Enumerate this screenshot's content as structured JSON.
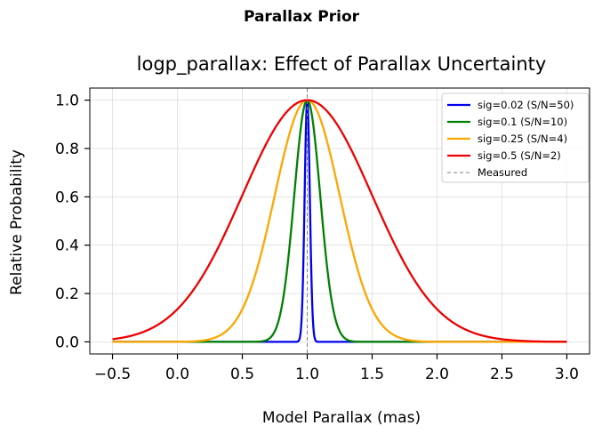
{
  "figure": {
    "suptitle": "Parallax Prior"
  },
  "chart_data": {
    "type": "line",
    "title": "logp_parallax: Effect of Parallax Uncertainty",
    "xlabel": "Model Parallax (mas)",
    "ylabel": "Relative Probability",
    "xlim": [
      -0.675,
      3.175
    ],
    "ylim": [
      -0.05,
      1.05
    ],
    "xticks": [
      -0.5,
      0.0,
      0.5,
      1.0,
      1.5,
      2.0,
      2.5,
      3.0
    ],
    "xtick_labels": [
      "−0.5",
      "0.0",
      "0.5",
      "1.0",
      "1.5",
      "2.0",
      "2.5",
      "3.0"
    ],
    "yticks": [
      0.0,
      0.2,
      0.4,
      0.6,
      0.8,
      1.0
    ],
    "ytick_labels": [
      "0.0",
      "0.2",
      "0.4",
      "0.6",
      "0.8",
      "1.0"
    ],
    "grid": true,
    "legend_position": "top-right",
    "x_range": [
      -0.5,
      3.0
    ],
    "measured_parallax": 1.0,
    "series": [
      {
        "name": "sig=0.02 (S/N=50)",
        "sigma": 0.02,
        "color": "#0000ee"
      },
      {
        "name": "sig=0.1 (S/N=10)",
        "sigma": 0.1,
        "color": "#008000"
      },
      {
        "name": "sig=0.25 (S/N=4)",
        "sigma": 0.25,
        "color": "#ffa500"
      },
      {
        "name": "sig=0.5 (S/N=2)",
        "sigma": 0.5,
        "color": "#ee0000"
      }
    ],
    "reference_line": {
      "name": "Measured",
      "x": 1.0,
      "color": "#808080",
      "style": "dashed"
    }
  }
}
